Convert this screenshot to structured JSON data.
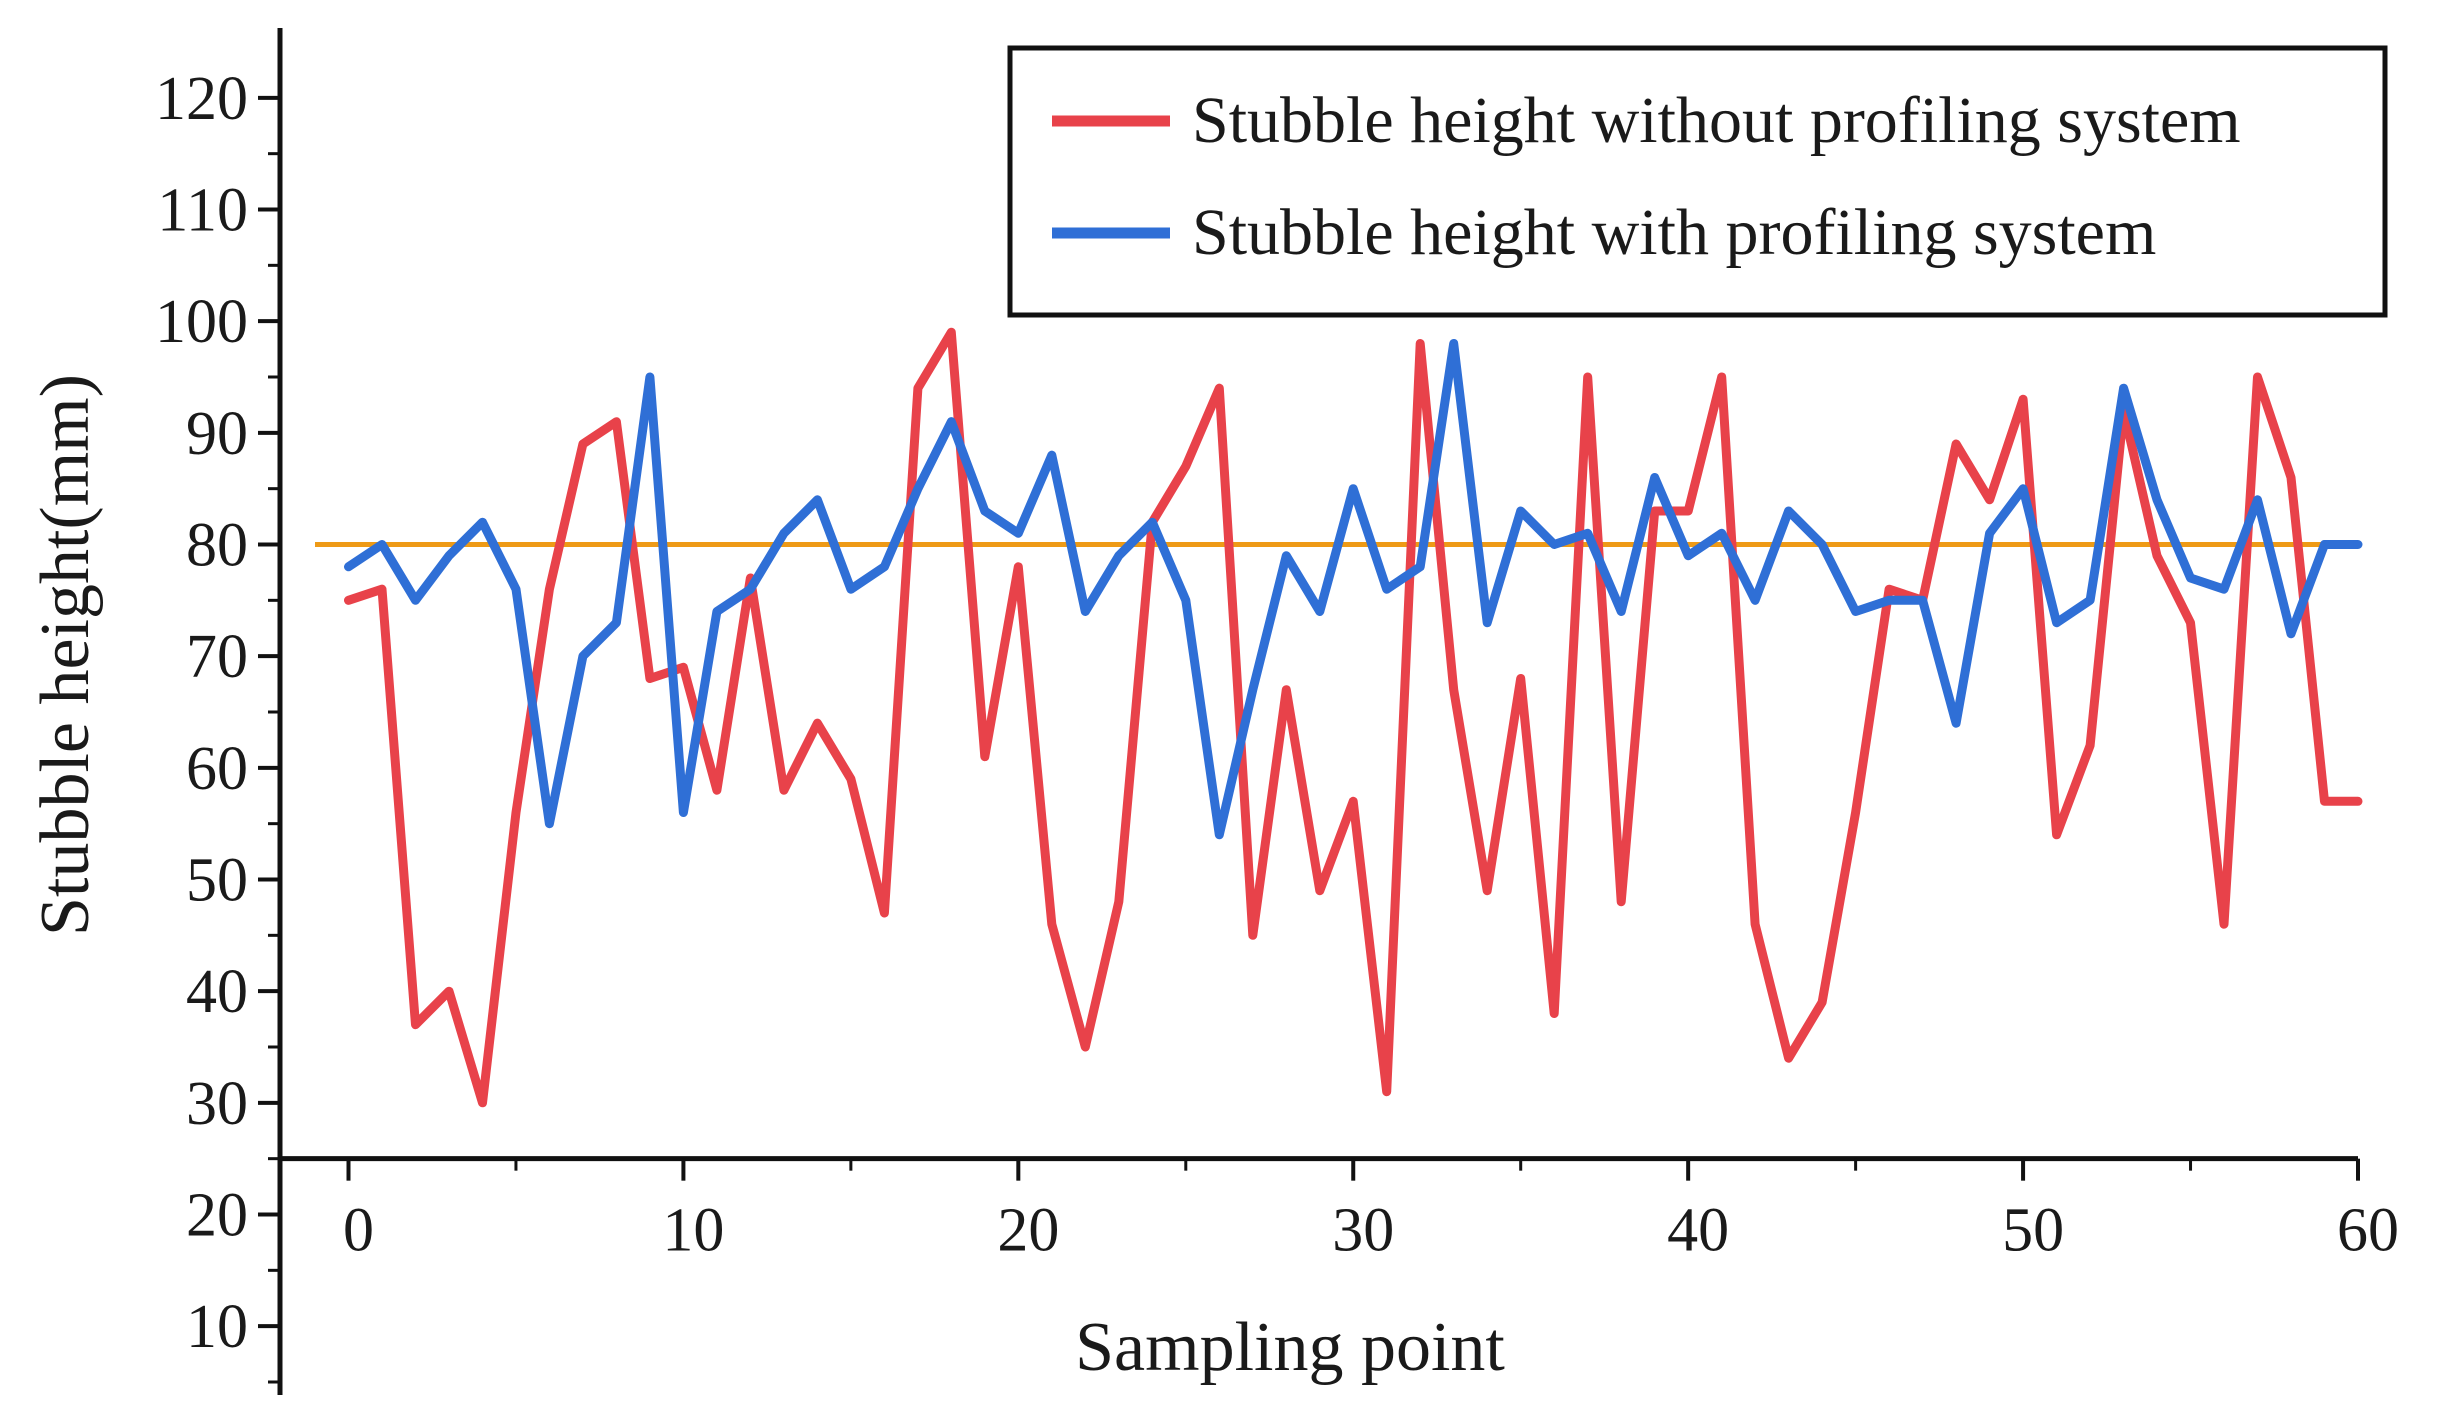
{
  "chart_data": {
    "type": "line",
    "title": "",
    "xlabel": "Sampling point",
    "ylabel": "Stubble height(mm)",
    "xlim": [
      0,
      60
    ],
    "ylim": [
      5,
      125
    ],
    "x_plot_range": [
      -1,
      60
    ],
    "x_axis_crossing_y": 25,
    "xticks": [
      0,
      10,
      20,
      30,
      40,
      50,
      60
    ],
    "xtick_labels": [
      "0",
      "10",
      "20",
      "30",
      "40",
      "50",
      "60"
    ],
    "yticks": [
      10,
      20,
      30,
      40,
      50,
      60,
      70,
      80,
      90,
      100,
      110,
      120
    ],
    "ytick_labels": [
      "10",
      "20",
      "30",
      "40",
      "50",
      "60",
      "70",
      "80",
      "90",
      "100",
      "110",
      "120"
    ],
    "grid": false,
    "legend_position": "top-right",
    "reference_line": {
      "y": 80,
      "color": "#ee9a16"
    },
    "series": [
      {
        "name": "Stubble height without profiling system",
        "color": "#e8424a",
        "x": [
          0,
          1,
          2,
          3,
          4,
          5,
          6,
          7,
          8,
          9,
          10,
          11,
          12,
          13,
          14,
          15,
          16,
          17,
          18,
          19,
          20,
          21,
          22,
          23,
          24,
          25,
          26,
          27,
          28,
          29,
          30,
          31,
          32,
          33,
          34,
          35,
          36,
          37,
          38,
          39,
          40,
          41,
          42,
          43,
          44,
          45,
          46,
          47,
          48,
          49,
          50,
          51,
          52,
          53,
          54,
          55,
          56,
          57,
          58,
          59,
          60
        ],
        "values": [
          75,
          76,
          37,
          40,
          30,
          56,
          76,
          89,
          91,
          68,
          69,
          58,
          77,
          58,
          64,
          59,
          47,
          94,
          99,
          61,
          78,
          46,
          35,
          48,
          82,
          87,
          94,
          45,
          67,
          49,
          57,
          31,
          98,
          67,
          49,
          68,
          38,
          95,
          48,
          83,
          83,
          95,
          46,
          34,
          39,
          56,
          76,
          75,
          89,
          84,
          93,
          54,
          62,
          92,
          79,
          73,
          46,
          95,
          86,
          57,
          57
        ],
        "y": [
          75,
          76,
          37,
          40,
          30,
          56,
          76,
          89,
          91,
          68,
          69,
          58,
          77,
          58,
          64,
          59,
          47,
          94,
          99,
          61,
          78,
          46,
          35,
          48,
          82,
          87,
          94,
          45,
          67,
          49,
          57,
          31,
          98,
          67,
          49,
          68,
          38,
          95,
          48,
          83,
          83,
          95,
          46,
          34,
          39,
          56,
          76,
          75,
          89,
          84,
          93,
          54,
          62,
          92,
          79,
          73,
          46,
          95,
          86,
          57,
          57
        ]
      },
      {
        "name": "Stubble height with profiling system",
        "color": "#2f6fd6",
        "x": [
          0,
          1,
          2,
          3,
          4,
          5,
          6,
          7,
          8,
          9,
          10,
          11,
          12,
          13,
          14,
          15,
          16,
          17,
          18,
          19,
          20,
          21,
          22,
          23,
          24,
          25,
          26,
          27,
          28,
          29,
          30,
          31,
          32,
          33,
          34,
          35,
          36,
          37,
          38,
          39,
          40,
          41,
          42,
          43,
          44,
          45,
          46,
          47,
          48,
          49,
          50,
          51,
          52,
          53,
          54,
          55,
          56,
          57,
          58,
          59,
          60
        ],
        "values": [
          78,
          80,
          75,
          79,
          82,
          76,
          55,
          70,
          73,
          95,
          56,
          74,
          76,
          81,
          84,
          76,
          78,
          85,
          91,
          83,
          81,
          88,
          74,
          79,
          82,
          75,
          54,
          67,
          79,
          74,
          85,
          76,
          78,
          98,
          73,
          83,
          80,
          81,
          74,
          86,
          79,
          81,
          75,
          83,
          80,
          74,
          75,
          75,
          64,
          81,
          85,
          73,
          75,
          94,
          84,
          77,
          76,
          84,
          72,
          80,
          80
        ],
        "y": [
          78,
          80,
          75,
          79,
          82,
          76,
          55,
          70,
          73,
          95,
          56,
          74,
          76,
          81,
          84,
          76,
          78,
          85,
          91,
          83,
          81,
          88,
          74,
          79,
          82,
          75,
          54,
          67,
          79,
          74,
          85,
          76,
          78,
          98,
          73,
          83,
          80,
          81,
          74,
          86,
          79,
          81,
          75,
          83,
          80,
          74,
          75,
          75,
          64,
          81,
          85,
          73,
          75,
          94,
          84,
          77,
          76,
          84,
          72,
          80,
          80
        ]
      }
    ]
  }
}
